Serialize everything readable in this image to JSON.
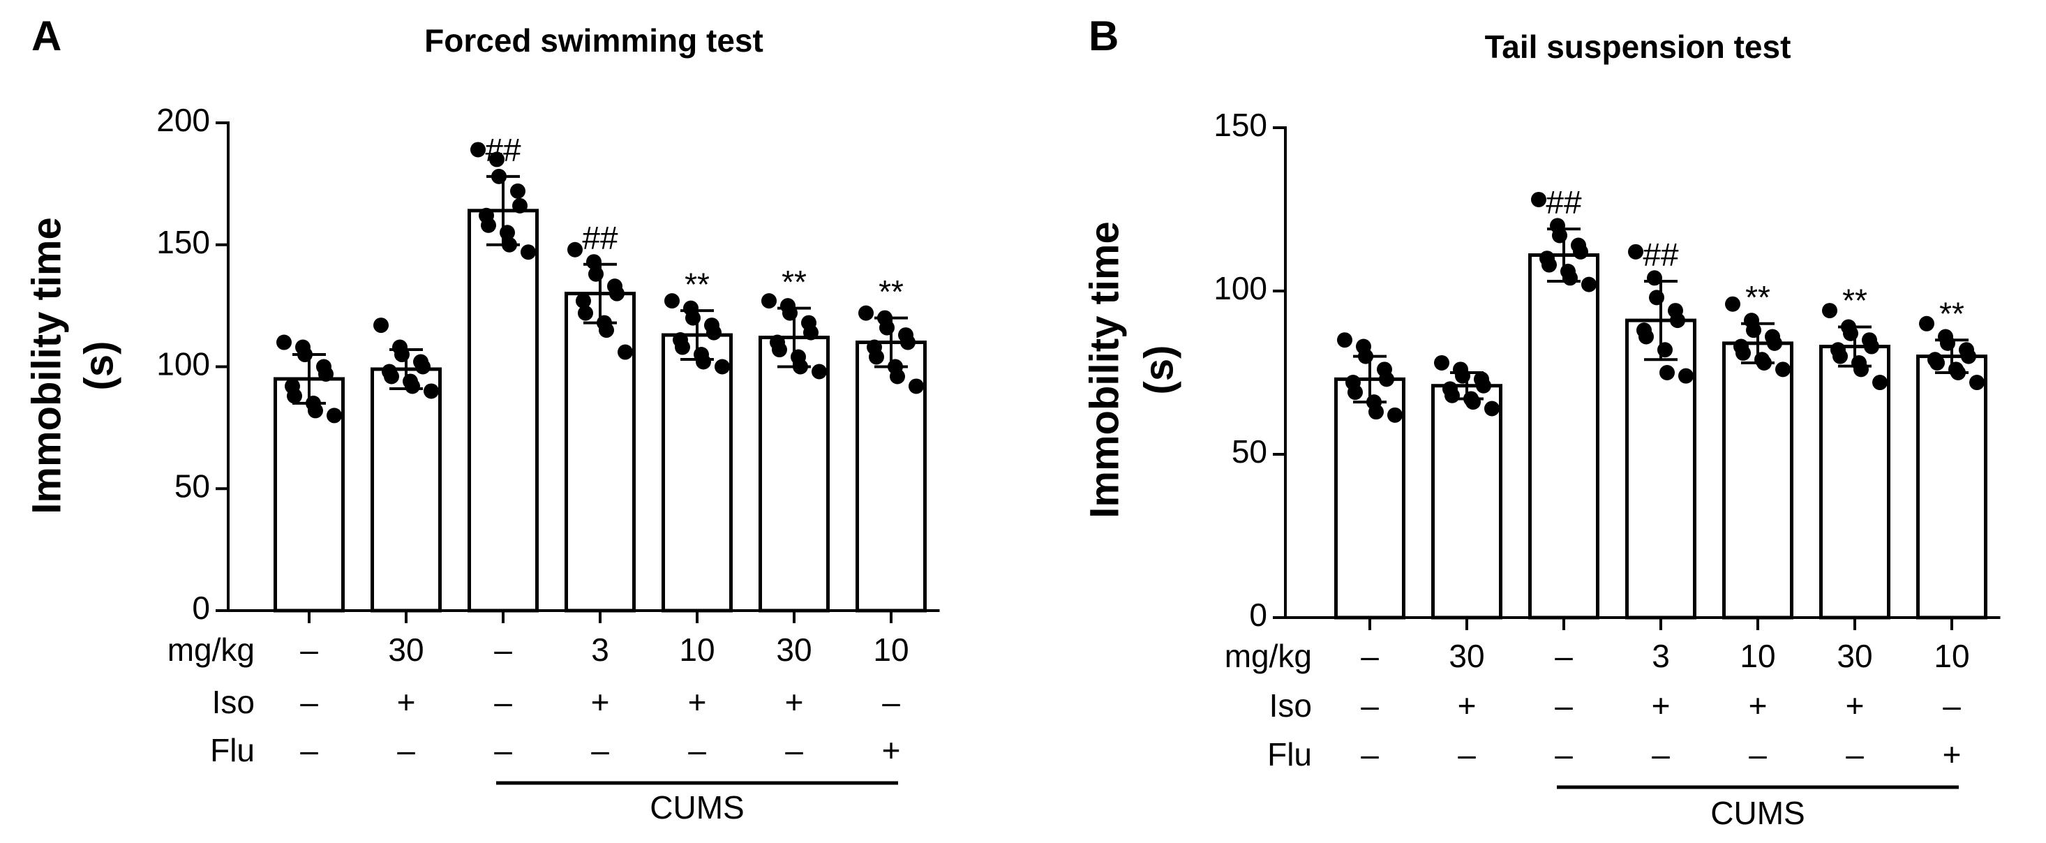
{
  "chart_data": [
    {
      "type": "bar",
      "panel": "A",
      "title": "Forced swimming test",
      "y_label": [
        "Immobility time",
        "(s)"
      ],
      "categories": [
        null,
        null,
        null,
        null,
        null,
        null,
        null
      ],
      "values": [
        95,
        99,
        164,
        130,
        113,
        112,
        110
      ],
      "errors": [
        10,
        8,
        14,
        12,
        10,
        12,
        10
      ],
      "points": [
        [
          110,
          108,
          105,
          100,
          97,
          92,
          88,
          85,
          82,
          80
        ],
        [
          117,
          108,
          105,
          102,
          100,
          98,
          96,
          94,
          92,
          90
        ],
        [
          189,
          185,
          178,
          172,
          166,
          162,
          158,
          155,
          150,
          147
        ],
        [
          148,
          143,
          138,
          133,
          130,
          127,
          122,
          118,
          115,
          106
        ],
        [
          127,
          124,
          120,
          117,
          114,
          111,
          108,
          105,
          102,
          100
        ],
        [
          127,
          125,
          122,
          118,
          114,
          110,
          107,
          104,
          100,
          98
        ],
        [
          122,
          120,
          116,
          113,
          110,
          108,
          104,
          100,
          96,
          92
        ]
      ],
      "annotations": [
        null,
        null,
        "##",
        "##",
        "**",
        "**",
        "**"
      ],
      "color": "#ffffff",
      "point_color": "#000000",
      "ylim": [
        0,
        200
      ],
      "yticks": [
        0,
        50,
        100,
        150,
        200
      ],
      "conditions": [
        {
          "label": "mg/kg",
          "values": [
            "–",
            "30",
            "–",
            "3",
            "10",
            "30",
            "10"
          ]
        },
        {
          "label": "Iso",
          "values": [
            "–",
            "+",
            "–",
            "+",
            "+",
            "+",
            "–"
          ]
        },
        {
          "label": "Flu",
          "values": [
            "–",
            "–",
            "–",
            "–",
            "–",
            "–",
            "+"
          ]
        }
      ],
      "group": {
        "label": "CUMS",
        "members": [
          false,
          false,
          true,
          true,
          true,
          true,
          true
        ]
      }
    },
    {
      "type": "bar",
      "panel": "B",
      "title": "Tail suspension test",
      "y_label": [
        "Immobility time",
        "(s)"
      ],
      "categories": [
        null,
        null,
        null,
        null,
        null,
        null,
        null
      ],
      "values": [
        73,
        71,
        111,
        91,
        84,
        83,
        80
      ],
      "errors": [
        7,
        4,
        8,
        12,
        6,
        6,
        5
      ],
      "points": [
        [
          85,
          83,
          80,
          76,
          73,
          72,
          69,
          66,
          63,
          62
        ],
        [
          78,
          76,
          74,
          73,
          71,
          70,
          68,
          67,
          66,
          64
        ],
        [
          128,
          120,
          117,
          114,
          112,
          110,
          108,
          106,
          104,
          102
        ],
        [
          112,
          104,
          98,
          94,
          91,
          88,
          86,
          82,
          75,
          74
        ],
        [
          96,
          91,
          88,
          86,
          84,
          83,
          81,
          79,
          78,
          76
        ],
        [
          94,
          89,
          87,
          85,
          83,
          82,
          80,
          78,
          76,
          72
        ],
        [
          90,
          86,
          84,
          82,
          80,
          79,
          78,
          76,
          75,
          72
        ]
      ],
      "annotations": [
        null,
        null,
        "##",
        "##",
        "**",
        "**",
        "**"
      ],
      "color": "#ffffff",
      "point_color": "#000000",
      "ylim": [
        0,
        150
      ],
      "yticks": [
        0,
        50,
        100,
        150
      ],
      "conditions": [
        {
          "label": "mg/kg",
          "values": [
            "–",
            "30",
            "–",
            "3",
            "10",
            "30",
            "10"
          ]
        },
        {
          "label": "Iso",
          "values": [
            "–",
            "+",
            "–",
            "+",
            "+",
            "+",
            "–"
          ]
        },
        {
          "label": "Flu",
          "values": [
            "–",
            "–",
            "–",
            "–",
            "–",
            "–",
            "+"
          ]
        }
      ],
      "group": {
        "label": "CUMS",
        "members": [
          false,
          false,
          true,
          true,
          true,
          true,
          true
        ]
      }
    }
  ]
}
